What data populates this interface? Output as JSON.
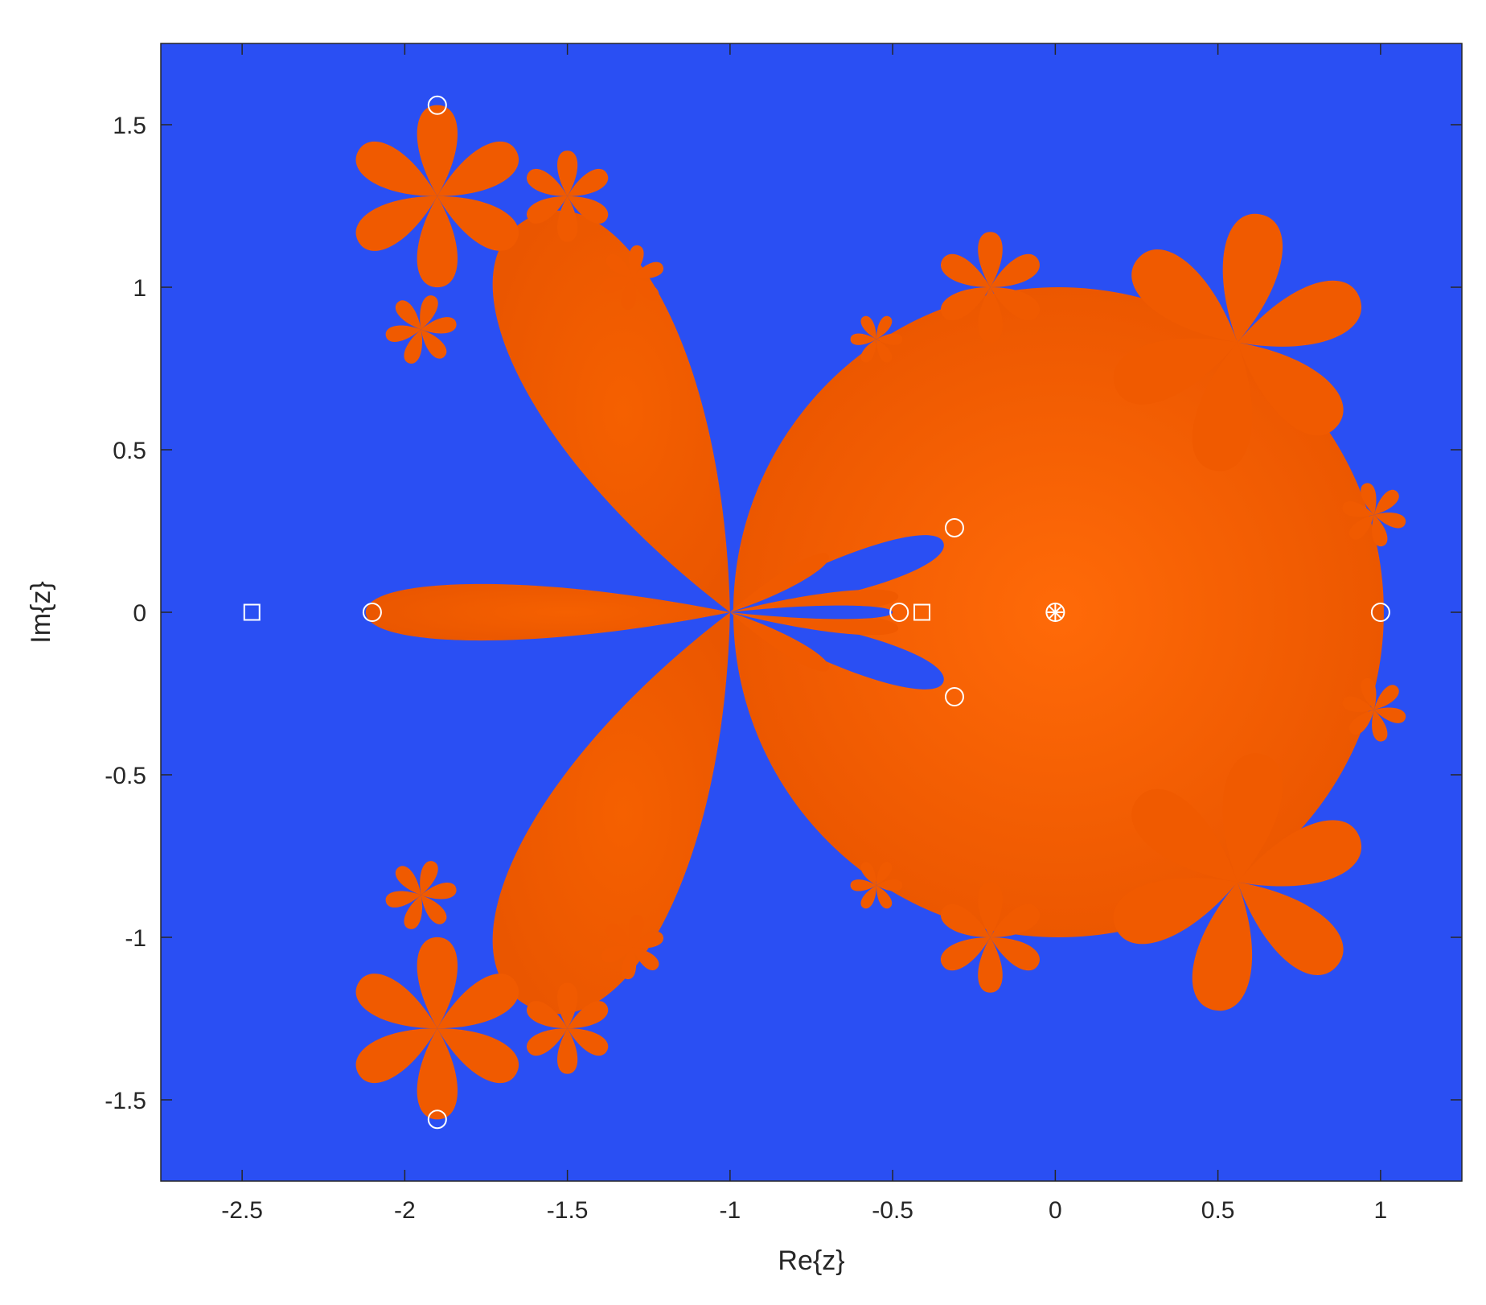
{
  "chart_data": {
    "type": "scatter",
    "title": "",
    "xlabel": "Re{z}",
    "ylabel": "Im{z}",
    "xlim": [
      -2.75,
      1.25
    ],
    "ylim": [
      -1.75,
      1.75
    ],
    "x_ticks": [
      -2.5,
      -2,
      -1.5,
      -1,
      -0.5,
      0,
      0.5,
      1
    ],
    "x_tick_labels": [
      "-2.5",
      "-2",
      "-1.5",
      "-1",
      "-0.5",
      "0",
      "0.5",
      "1"
    ],
    "y_ticks": [
      1.5,
      1,
      0.5,
      0,
      -0.5,
      -1,
      -1.5
    ],
    "y_tick_labels": [
      "1.5",
      "1",
      "0.5",
      "0",
      "-0.5",
      "-1",
      "-1.5"
    ],
    "grid": false,
    "background_color": "#2a4ff3",
    "region_color": "#f05a00",
    "marker_color": "#ffffff",
    "series": [
      {
        "marker": "circle",
        "points": [
          {
            "x": -1.9,
            "y": 1.56
          },
          {
            "x": -2.1,
            "y": 0
          },
          {
            "x": -1.9,
            "y": -1.56
          },
          {
            "x": -0.48,
            "y": 0
          },
          {
            "x": -0.31,
            "y": 0.26
          },
          {
            "x": -0.31,
            "y": -0.26
          },
          {
            "x": 0,
            "y": 0
          },
          {
            "x": 1,
            "y": 0
          }
        ]
      },
      {
        "marker": "square",
        "points": [
          {
            "x": -2.47,
            "y": 0
          },
          {
            "x": -0.41,
            "y": 0
          }
        ]
      },
      {
        "marker": "asterisk",
        "points": [
          {
            "x": 0,
            "y": 0
          }
        ]
      }
    ]
  }
}
